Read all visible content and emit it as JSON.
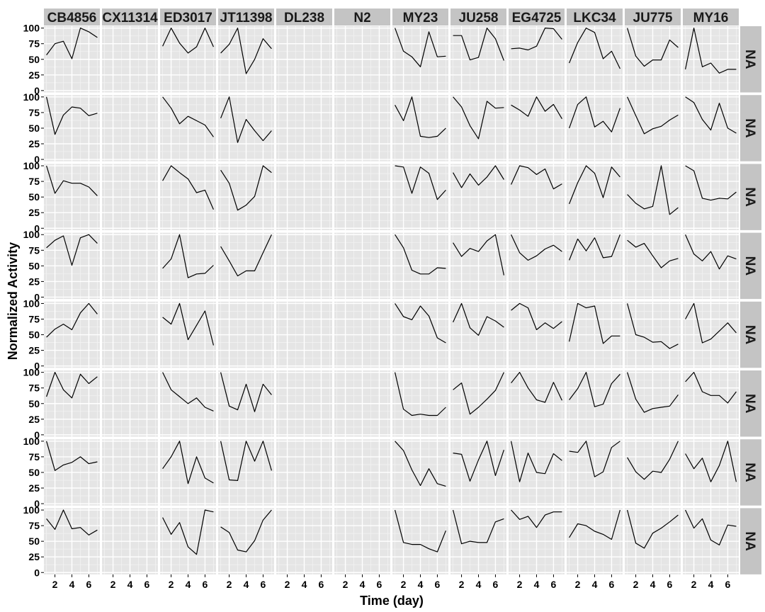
{
  "chart_data": {
    "type": "line",
    "xlabel": "Time (day)",
    "ylabel": "Normalized Activity",
    "xlim": [
      1,
      7
    ],
    "ylim": [
      0,
      100
    ],
    "x_ticks": [
      2,
      4,
      6
    ],
    "y_ticks": [
      0,
      25,
      50,
      75,
      100
    ],
    "x": [
      1,
      2,
      3,
      4,
      5,
      6,
      7
    ],
    "columns": [
      "CB4856",
      "CX11314",
      "ED3017",
      "JT11398",
      "DL238",
      "N2",
      "MY23",
      "JU258",
      "EG4725",
      "LKC34",
      "JU775",
      "MY16"
    ],
    "row_strip_label": "NA",
    "grid": true,
    "panels": [
      [
        [
          57,
          75,
          79,
          51,
          100,
          94,
          85
        ],
        [],
        [
          71,
          100,
          76,
          60,
          70,
          100,
          70
        ],
        [
          60,
          74,
          100,
          27,
          50,
          83,
          67
        ],
        [],
        [],
        [
          100,
          63,
          54,
          38,
          94,
          54,
          55
        ],
        [
          88,
          88,
          49,
          53,
          100,
          83,
          48
        ],
        [
          67,
          68,
          65,
          71,
          100,
          99,
          82
        ],
        [
          44,
          77,
          100,
          93,
          51,
          63,
          35
        ],
        [
          100,
          55,
          39,
          49,
          49,
          81,
          69
        ],
        [
          34,
          100,
          38,
          44,
          28,
          34,
          34
        ]
      ],
      [
        [
          100,
          40,
          71,
          84,
          82,
          70,
          74
        ],
        [],
        [
          100,
          82,
          57,
          69,
          62,
          55,
          36
        ],
        [
          66,
          100,
          27,
          64,
          46,
          30,
          46
        ],
        [],
        [],
        [
          87,
          62,
          100,
          37,
          35,
          37,
          50
        ],
        [
          100,
          84,
          54,
          33,
          93,
          82,
          83
        ],
        [
          87,
          79,
          69,
          100,
          77,
          88,
          65
        ],
        [
          50,
          88,
          100,
          52,
          61,
          44,
          82
        ],
        [
          100,
          70,
          41,
          49,
          53,
          63,
          71
        ],
        [
          100,
          91,
          64,
          47,
          90,
          50,
          42
        ]
      ],
      [
        [
          100,
          56,
          76,
          72,
          72,
          66,
          52
        ],
        [],
        [
          76,
          100,
          89,
          79,
          57,
          61,
          30
        ],
        [
          93,
          72,
          29,
          37,
          51,
          100,
          89
        ],
        [],
        [],
        [
          100,
          98,
          56,
          98,
          88,
          46,
          61
        ],
        [
          89,
          65,
          87,
          69,
          82,
          100,
          78
        ],
        [
          70,
          100,
          97,
          86,
          95,
          63,
          71
        ],
        [
          39,
          73,
          100,
          88,
          49,
          98,
          82
        ],
        [
          54,
          40,
          31,
          35,
          100,
          22,
          33
        ],
        [
          100,
          92,
          48,
          45,
          48,
          47,
          58
        ]
      ],
      [
        [
          79,
          91,
          98,
          51,
          95,
          100,
          86
        ],
        [],
        [
          46,
          61,
          100,
          31,
          37,
          38,
          51
        ],
        [
          81,
          58,
          34,
          42,
          42,
          71,
          100
        ],
        [],
        [],
        [
          100,
          79,
          43,
          37,
          37,
          47,
          46
        ],
        [
          87,
          65,
          78,
          73,
          90,
          100,
          35
        ],
        [
          100,
          71,
          59,
          66,
          77,
          83,
          73
        ],
        [
          59,
          93,
          74,
          95,
          63,
          65,
          100
        ],
        [
          91,
          80,
          86,
          66,
          47,
          58,
          62
        ],
        [
          100,
          69,
          58,
          73,
          45,
          66,
          61
        ]
      ],
      [
        [
          46,
          59,
          67,
          58,
          85,
          100,
          83
        ],
        [],
        [
          78,
          67,
          100,
          42,
          65,
          88,
          33
        ],
        [],
        [],
        [],
        [
          100,
          79,
          74,
          96,
          80,
          45,
          37
        ],
        [
          70,
          100,
          61,
          49,
          79,
          72,
          62
        ],
        [
          89,
          100,
          93,
          58,
          69,
          60,
          71
        ],
        [
          39,
          100,
          93,
          96,
          36,
          48,
          48
        ],
        [
          100,
          50,
          46,
          38,
          39,
          28,
          35
        ],
        [
          75,
          100,
          37,
          43,
          56,
          69,
          53
        ]
      ],
      [
        [
          61,
          100,
          72,
          59,
          97,
          82,
          93
        ],
        [],
        [
          100,
          72,
          61,
          50,
          59,
          44,
          38
        ],
        [
          100,
          46,
          40,
          81,
          37,
          81,
          64
        ],
        [],
        [],
        [
          100,
          41,
          31,
          33,
          31,
          31,
          44
        ],
        [
          72,
          83,
          33,
          44,
          57,
          71,
          100
        ],
        [
          83,
          100,
          75,
          56,
          52,
          84,
          55
        ],
        [
          56,
          74,
          100,
          45,
          49,
          82,
          97
        ],
        [
          100,
          57,
          36,
          42,
          44,
          46,
          64
        ],
        [
          85,
          100,
          69,
          63,
          63,
          51,
          69
        ]
      ],
      [
        [
          100,
          53,
          62,
          66,
          75,
          64,
          67
        ],
        [],
        [
          56,
          75,
          100,
          32,
          75,
          41,
          33
        ],
        [
          100,
          38,
          37,
          100,
          68,
          100,
          53
        ],
        [],
        [],
        [
          100,
          85,
          54,
          29,
          56,
          32,
          28
        ],
        [
          81,
          79,
          36,
          70,
          100,
          45,
          86
        ],
        [
          100,
          35,
          81,
          50,
          48,
          80,
          69
        ],
        [
          84,
          82,
          100,
          43,
          51,
          90,
          100
        ],
        [
          74,
          51,
          39,
          52,
          50,
          71,
          100
        ],
        [
          80,
          56,
          73,
          35,
          61,
          100,
          35
        ]
      ],
      [
        [
          86,
          69,
          100,
          70,
          72,
          60,
          68
        ],
        [],
        [
          88,
          61,
          80,
          41,
          29,
          100,
          97
        ],
        [
          73,
          64,
          36,
          33,
          51,
          84,
          100
        ],
        [],
        [],
        [
          100,
          48,
          45,
          45,
          38,
          33,
          67
        ],
        [
          100,
          46,
          50,
          48,
          48,
          81,
          86
        ],
        [
          100,
          85,
          90,
          72,
          92,
          97,
          97
        ],
        [
          56,
          78,
          75,
          66,
          61,
          53,
          100
        ],
        [
          100,
          47,
          39,
          63,
          71,
          81,
          92
        ],
        [
          100,
          71,
          86,
          52,
          44,
          76,
          74
        ]
      ]
    ]
  },
  "colors": {
    "panel_background": "#e5e5e5",
    "grid_major": "#ffffff",
    "grid_minor": "#f2f2f2",
    "strip_background": "#c4c4c4",
    "strip_text": "#1a1a1a",
    "line": "#000000",
    "axis_text": "#000000"
  }
}
